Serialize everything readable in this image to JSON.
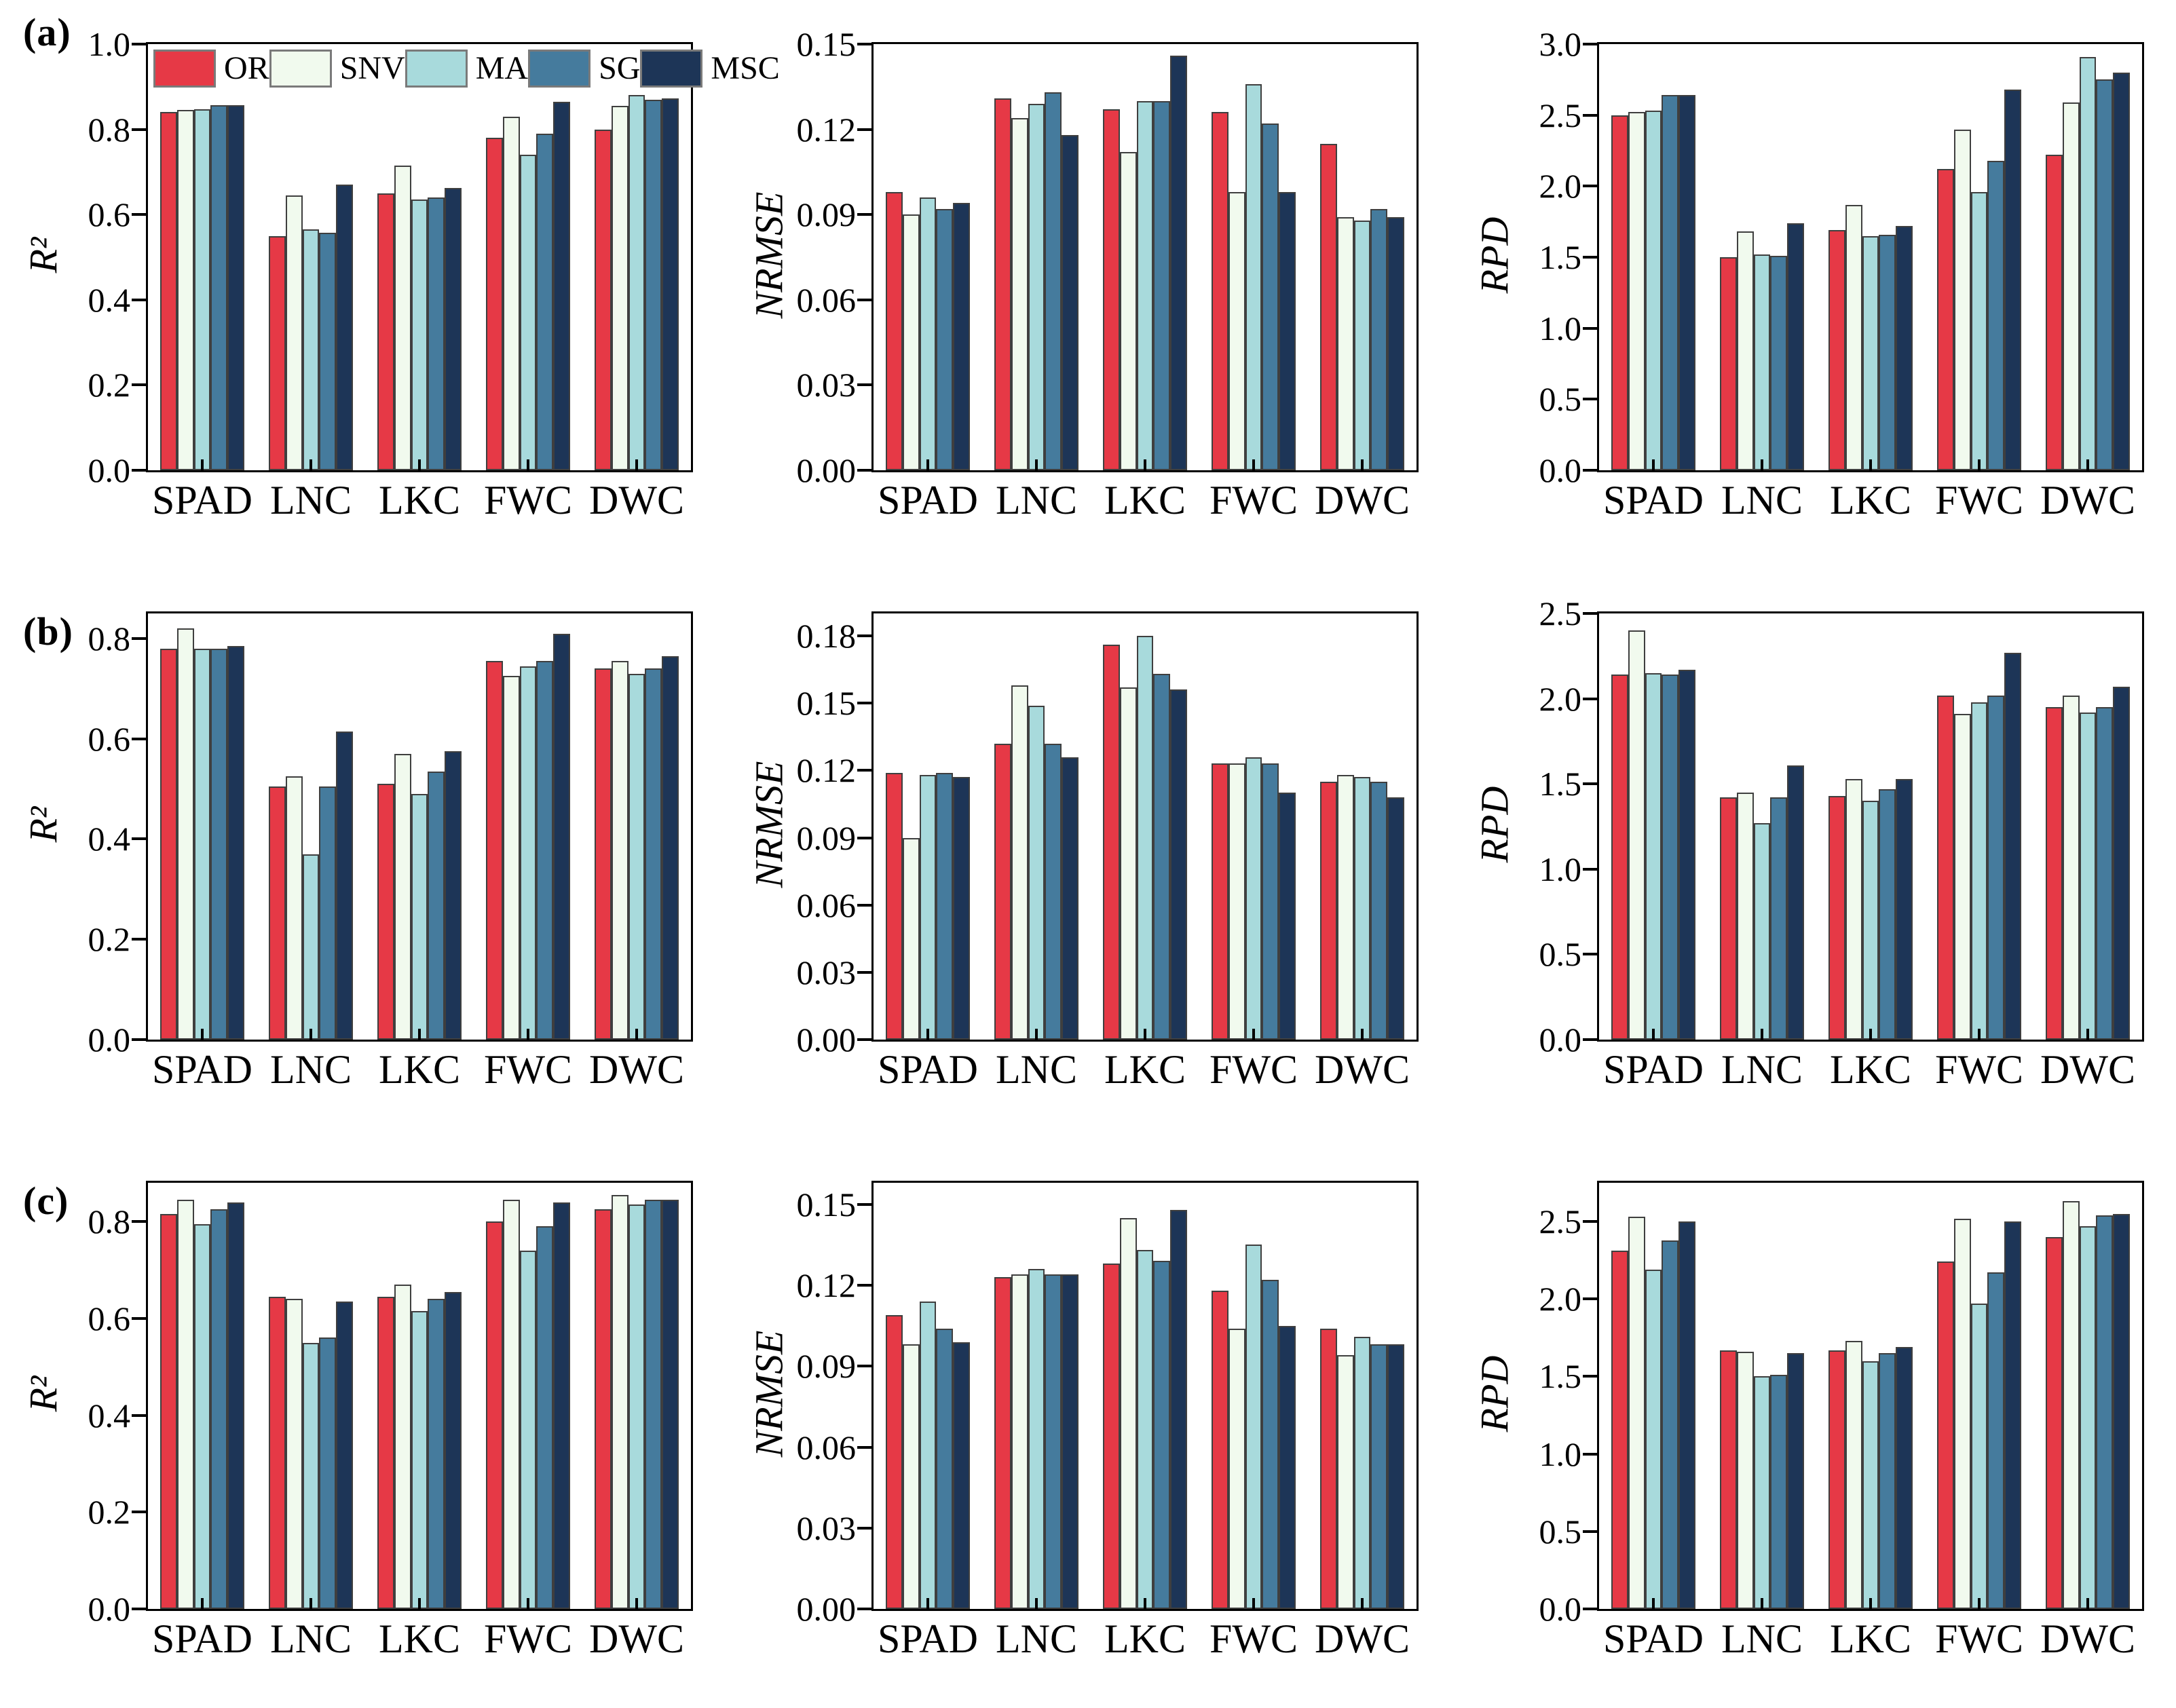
{
  "figure": {
    "series_names": [
      "OR",
      "SNV",
      "MA",
      "SG",
      "MSC"
    ],
    "series_colors": [
      "#e63946",
      "#f1faee",
      "#a8dadc",
      "#457b9d",
      "#1d3557"
    ],
    "bar_border_color": "#3f3f3f",
    "categories": [
      "SPAD",
      "LNC",
      "LKC",
      "FWC",
      "DWC"
    ],
    "panel_labels": [
      "(a)",
      "(b)",
      "(c)"
    ]
  },
  "chart_data": [
    {
      "type": "bar",
      "panel_label": "(a)",
      "metric": "R2",
      "ylabel": "R²",
      "xlabel": "",
      "ylim": [
        0,
        1.0
      ],
      "yticks": [
        "0.0",
        "0.2",
        "0.4",
        "0.6",
        "0.8",
        "1.0"
      ],
      "grid": false,
      "legend_position": "top-inside",
      "show_legend": true,
      "categories": [
        "SPAD",
        "LNC",
        "LKC",
        "FWC",
        "DWC"
      ],
      "series": [
        {
          "name": "OR",
          "values": [
            0.84,
            0.55,
            0.65,
            0.78,
            0.8
          ]
        },
        {
          "name": "SNV",
          "values": [
            0.845,
            0.645,
            0.715,
            0.83,
            0.855
          ]
        },
        {
          "name": "MA",
          "values": [
            0.847,
            0.565,
            0.635,
            0.74,
            0.88
          ]
        },
        {
          "name": "SG",
          "values": [
            0.857,
            0.558,
            0.64,
            0.79,
            0.87
          ]
        },
        {
          "name": "MSC",
          "values": [
            0.857,
            0.67,
            0.662,
            0.865,
            0.873
          ]
        }
      ]
    },
    {
      "type": "bar",
      "panel_label": "",
      "metric": "NRMSE",
      "ylabel": "NRMSE",
      "xlabel": "",
      "ylim": [
        0,
        0.15
      ],
      "yticks": [
        "0.00",
        "0.03",
        "0.06",
        "0.09",
        "0.12",
        "0.15"
      ],
      "grid": false,
      "show_legend": false,
      "categories": [
        "SPAD",
        "LNC",
        "LKC",
        "FWC",
        "DWC"
      ],
      "series": [
        {
          "name": "OR",
          "values": [
            0.098,
            0.131,
            0.127,
            0.126,
            0.115
          ]
        },
        {
          "name": "SNV",
          "values": [
            0.09,
            0.124,
            0.112,
            0.098,
            0.089
          ]
        },
        {
          "name": "MA",
          "values": [
            0.096,
            0.129,
            0.13,
            0.136,
            0.088
          ]
        },
        {
          "name": "SG",
          "values": [
            0.092,
            0.133,
            0.13,
            0.122,
            0.092
          ]
        },
        {
          "name": "MSC",
          "values": [
            0.094,
            0.118,
            0.146,
            0.098,
            0.089
          ]
        }
      ]
    },
    {
      "type": "bar",
      "panel_label": "",
      "metric": "RPD",
      "ylabel": "RPD",
      "xlabel": "",
      "ylim": [
        0,
        3.0
      ],
      "yticks": [
        "0.0",
        "0.5",
        "1.0",
        "1.5",
        "2.0",
        "2.5",
        "3.0"
      ],
      "grid": false,
      "show_legend": false,
      "categories": [
        "SPAD",
        "LNC",
        "LKC",
        "FWC",
        "DWC"
      ],
      "series": [
        {
          "name": "OR",
          "values": [
            2.5,
            1.5,
            1.69,
            2.12,
            2.22
          ]
        },
        {
          "name": "SNV",
          "values": [
            2.52,
            1.68,
            1.87,
            2.4,
            2.59
          ]
        },
        {
          "name": "MA",
          "values": [
            2.53,
            1.52,
            1.65,
            1.96,
            2.91
          ]
        },
        {
          "name": "SG",
          "values": [
            2.64,
            1.51,
            1.66,
            2.18,
            2.75
          ]
        },
        {
          "name": "MSC",
          "values": [
            2.64,
            1.74,
            1.72,
            2.68,
            2.8
          ]
        }
      ]
    },
    {
      "type": "bar",
      "panel_label": "(b)",
      "metric": "R2",
      "ylabel": "R²",
      "xlabel": "",
      "ylim": [
        0,
        0.85
      ],
      "yticks": [
        "0.0",
        "0.2",
        "0.4",
        "0.6",
        "0.8"
      ],
      "grid": false,
      "show_legend": false,
      "categories": [
        "SPAD",
        "LNC",
        "LKC",
        "FWC",
        "DWC"
      ],
      "series": [
        {
          "name": "OR",
          "values": [
            0.78,
            0.505,
            0.51,
            0.755,
            0.74
          ]
        },
        {
          "name": "SNV",
          "values": [
            0.82,
            0.525,
            0.57,
            0.725,
            0.755
          ]
        },
        {
          "name": "MA",
          "values": [
            0.78,
            0.37,
            0.49,
            0.745,
            0.73
          ]
        },
        {
          "name": "SG",
          "values": [
            0.78,
            0.505,
            0.535,
            0.755,
            0.74
          ]
        },
        {
          "name": "MSC",
          "values": [
            0.785,
            0.615,
            0.575,
            0.81,
            0.765
          ]
        }
      ]
    },
    {
      "type": "bar",
      "panel_label": "",
      "metric": "NRMSE",
      "ylabel": "NRMSE",
      "xlabel": "",
      "ylim": [
        0,
        0.19
      ],
      "yticks": [
        "0.00",
        "0.03",
        "0.06",
        "0.09",
        "0.12",
        "0.15",
        "0.18"
      ],
      "grid": false,
      "show_legend": false,
      "categories": [
        "SPAD",
        "LNC",
        "LKC",
        "FWC",
        "DWC"
      ],
      "series": [
        {
          "name": "OR",
          "values": [
            0.119,
            0.132,
            0.176,
            0.123,
            0.115
          ]
        },
        {
          "name": "SNV",
          "values": [
            0.09,
            0.158,
            0.157,
            0.123,
            0.118
          ]
        },
        {
          "name": "MA",
          "values": [
            0.118,
            0.149,
            0.18,
            0.126,
            0.117
          ]
        },
        {
          "name": "SG",
          "values": [
            0.119,
            0.132,
            0.163,
            0.123,
            0.115
          ]
        },
        {
          "name": "MSC",
          "values": [
            0.117,
            0.126,
            0.156,
            0.11,
            0.108
          ]
        }
      ]
    },
    {
      "type": "bar",
      "panel_label": "",
      "metric": "RPD",
      "ylabel": "RPD",
      "xlabel": "",
      "ylim": [
        0,
        2.5
      ],
      "yticks": [
        "0.0",
        "0.5",
        "1.0",
        "1.5",
        "2.0",
        "2.5"
      ],
      "grid": false,
      "show_legend": false,
      "categories": [
        "SPAD",
        "LNC",
        "LKC",
        "FWC",
        "DWC"
      ],
      "series": [
        {
          "name": "OR",
          "values": [
            2.14,
            1.42,
            1.43,
            2.02,
            1.95
          ]
        },
        {
          "name": "SNV",
          "values": [
            2.4,
            1.45,
            1.53,
            1.91,
            2.02
          ]
        },
        {
          "name": "MA",
          "values": [
            2.15,
            1.27,
            1.4,
            1.98,
            1.92
          ]
        },
        {
          "name": "SG",
          "values": [
            2.14,
            1.42,
            1.47,
            2.02,
            1.95
          ]
        },
        {
          "name": "MSC",
          "values": [
            2.17,
            1.61,
            1.53,
            2.27,
            2.07
          ]
        }
      ]
    },
    {
      "type": "bar",
      "panel_label": "(c)",
      "metric": "R2",
      "ylabel": "R²",
      "xlabel": "",
      "ylim": [
        0,
        0.88
      ],
      "yticks": [
        "0.0",
        "0.2",
        "0.4",
        "0.6",
        "0.8"
      ],
      "grid": false,
      "show_legend": false,
      "categories": [
        "SPAD",
        "LNC",
        "LKC",
        "FWC",
        "DWC"
      ],
      "series": [
        {
          "name": "OR",
          "values": [
            0.815,
            0.645,
            0.645,
            0.8,
            0.825
          ]
        },
        {
          "name": "SNV",
          "values": [
            0.845,
            0.64,
            0.67,
            0.845,
            0.855
          ]
        },
        {
          "name": "MA",
          "values": [
            0.795,
            0.55,
            0.615,
            0.74,
            0.835
          ]
        },
        {
          "name": "SG",
          "values": [
            0.825,
            0.56,
            0.64,
            0.79,
            0.845
          ]
        },
        {
          "name": "MSC",
          "values": [
            0.84,
            0.635,
            0.655,
            0.84,
            0.845
          ]
        }
      ]
    },
    {
      "type": "bar",
      "panel_label": "",
      "metric": "NRMSE",
      "ylabel": "NRMSE",
      "xlabel": "",
      "ylim": [
        0,
        0.158
      ],
      "yticks": [
        "0.00",
        "0.03",
        "0.06",
        "0.09",
        "0.12",
        "0.15"
      ],
      "grid": false,
      "show_legend": false,
      "categories": [
        "SPAD",
        "LNC",
        "LKC",
        "FWC",
        "DWC"
      ],
      "series": [
        {
          "name": "OR",
          "values": [
            0.109,
            0.123,
            0.128,
            0.118,
            0.104
          ]
        },
        {
          "name": "SNV",
          "values": [
            0.098,
            0.124,
            0.145,
            0.104,
            0.094
          ]
        },
        {
          "name": "MA",
          "values": [
            0.114,
            0.126,
            0.133,
            0.135,
            0.101
          ]
        },
        {
          "name": "SG",
          "values": [
            0.104,
            0.124,
            0.129,
            0.122,
            0.098
          ]
        },
        {
          "name": "MSC",
          "values": [
            0.099,
            0.124,
            0.148,
            0.105,
            0.098
          ]
        }
      ]
    },
    {
      "type": "bar",
      "panel_label": "",
      "metric": "RPD",
      "ylabel": "RPD",
      "xlabel": "",
      "ylim": [
        0,
        2.75
      ],
      "yticks": [
        "0.0",
        "0.5",
        "1.0",
        "1.5",
        "2.0",
        "2.5"
      ],
      "grid": false,
      "show_legend": false,
      "categories": [
        "SPAD",
        "LNC",
        "LKC",
        "FWC",
        "DWC"
      ],
      "series": [
        {
          "name": "OR",
          "values": [
            2.31,
            1.67,
            1.67,
            2.24,
            2.4
          ]
        },
        {
          "name": "SNV",
          "values": [
            2.53,
            1.66,
            1.73,
            2.52,
            2.63
          ]
        },
        {
          "name": "MA",
          "values": [
            2.19,
            1.5,
            1.6,
            1.97,
            2.47
          ]
        },
        {
          "name": "SG",
          "values": [
            2.38,
            1.51,
            1.65,
            2.17,
            2.54
          ]
        },
        {
          "name": "MSC",
          "values": [
            2.5,
            1.65,
            1.69,
            2.5,
            2.55
          ]
        }
      ]
    }
  ]
}
